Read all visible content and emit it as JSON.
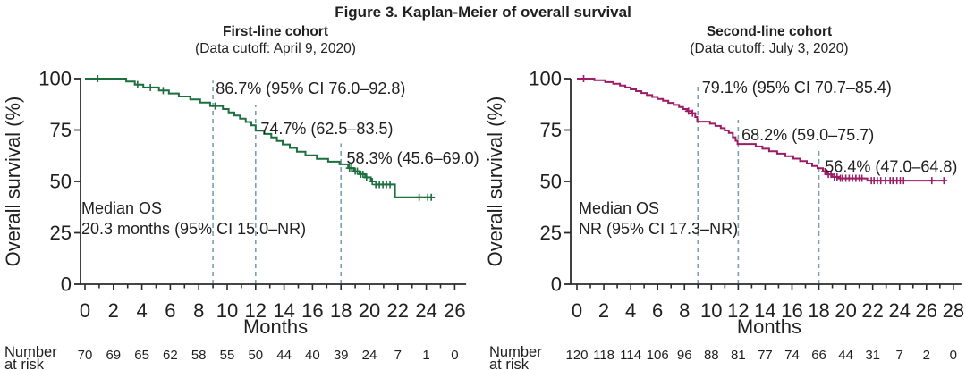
{
  "title": "Figure 3. Kaplan-Meier of overall survival",
  "chart_data": [
    {
      "type": "line",
      "subtype": "kaplan-meier-step",
      "header": "First-line cohort",
      "subheader": "(Data cutoff: April 9, 2020)",
      "color": "#1d6f3f",
      "dash_color": "#7d9eb0",
      "ylabel": "Overall survival (%)",
      "xlabel": "Months",
      "ylim": [
        0,
        100
      ],
      "yticks": [
        "100",
        "75",
        "50",
        "25",
        "0"
      ],
      "xticks": [
        "0",
        "2",
        "4",
        "6",
        "8",
        "10",
        "12",
        "14",
        "16",
        "18",
        "20",
        "22",
        "24",
        "26"
      ],
      "xmax": 26.8,
      "median_lines": [
        "Median OS",
        "20.3 months (95% CI 15.0–NR)"
      ],
      "annotations": [
        {
          "text": "86.7% (95% CI 76.0–92.8)",
          "x": 9.2,
          "pct": 92.6
        },
        {
          "text": "74.7% (62.5–83.5)",
          "x": 12.35,
          "pct": 73.0
        },
        {
          "text": "58.3% (45.6–69.0)",
          "x": 18.4,
          "pct": 58.7
        }
      ],
      "dashed_lines": [
        {
          "x": 9,
          "top_pct": 99.0
        },
        {
          "x": 12,
          "top_pct": 87.0
        },
        {
          "x": 18,
          "top_pct": 68.5
        }
      ],
      "risk_label_lines": [
        "Number",
        "at risk"
      ],
      "risk_values": [
        "70",
        "69",
        "65",
        "62",
        "58",
        "55",
        "50",
        "44",
        "40",
        "39",
        "24",
        "7",
        "1",
        "0"
      ],
      "curve": [
        [
          0,
          100
        ],
        [
          2.9,
          100
        ],
        [
          2.9,
          98.6
        ],
        [
          3.5,
          98.6
        ],
        [
          3.5,
          97.1
        ],
        [
          4.1,
          97.1
        ],
        [
          4.1,
          95.7
        ],
        [
          5.2,
          95.7
        ],
        [
          5.2,
          94.2
        ],
        [
          5.9,
          94.2
        ],
        [
          5.9,
          92.8
        ],
        [
          6.6,
          92.8
        ],
        [
          6.6,
          91.3
        ],
        [
          7.4,
          91.3
        ],
        [
          7.4,
          89.9
        ],
        [
          8.1,
          89.9
        ],
        [
          8.1,
          88.4
        ],
        [
          8.8,
          88.4
        ],
        [
          8.8,
          86.7
        ],
        [
          9.7,
          86.7
        ],
        [
          9.7,
          85.2
        ],
        [
          10.1,
          85.2
        ],
        [
          10.1,
          83.6
        ],
        [
          10.5,
          83.6
        ],
        [
          10.5,
          82.1
        ],
        [
          10.9,
          82.1
        ],
        [
          10.9,
          80.5
        ],
        [
          11.3,
          80.5
        ],
        [
          11.3,
          78.9
        ],
        [
          11.7,
          78.9
        ],
        [
          11.7,
          77.3
        ],
        [
          12.0,
          77.3
        ],
        [
          12.0,
          74.7
        ],
        [
          12.6,
          74.7
        ],
        [
          12.6,
          73.1
        ],
        [
          13.1,
          73.1
        ],
        [
          13.1,
          71.4
        ],
        [
          13.5,
          71.4
        ],
        [
          13.5,
          69.7
        ],
        [
          13.9,
          69.7
        ],
        [
          13.9,
          68.0
        ],
        [
          14.4,
          68.0
        ],
        [
          14.4,
          66.3
        ],
        [
          14.9,
          66.3
        ],
        [
          14.9,
          64.5
        ],
        [
          15.5,
          64.5
        ],
        [
          15.5,
          62.7
        ],
        [
          16.3,
          62.7
        ],
        [
          16.3,
          61.0
        ],
        [
          17.1,
          61.0
        ],
        [
          17.1,
          59.6
        ],
        [
          17.9,
          59.6
        ],
        [
          17.9,
          58.3
        ],
        [
          18.5,
          58.3
        ],
        [
          18.5,
          56.5
        ],
        [
          18.9,
          56.5
        ],
        [
          18.9,
          55.0
        ],
        [
          19.3,
          55.0
        ],
        [
          19.3,
          53.5
        ],
        [
          19.7,
          53.5
        ],
        [
          19.7,
          52.0
        ],
        [
          20.1,
          52.0
        ],
        [
          20.1,
          50.0
        ],
        [
          20.5,
          50.0
        ],
        [
          20.5,
          48.5
        ],
        [
          21.8,
          48.5
        ],
        [
          21.8,
          42.3
        ],
        [
          24.4,
          42.3
        ]
      ],
      "censors": [
        [
          0.9,
          100
        ],
        [
          3.7,
          97.1
        ],
        [
          4.6,
          95.7
        ],
        [
          5.5,
          94.2
        ],
        [
          9.15,
          86.7
        ],
        [
          18.6,
          56.5
        ],
        [
          18.75,
          56.5
        ],
        [
          19.0,
          55.0
        ],
        [
          19.15,
          55.0
        ],
        [
          19.4,
          53.5
        ],
        [
          19.55,
          53.5
        ],
        [
          19.8,
          52.0
        ],
        [
          20.2,
          50.0
        ],
        [
          20.45,
          48.5
        ],
        [
          20.7,
          48.5
        ],
        [
          20.95,
          48.5
        ],
        [
          21.2,
          48.5
        ],
        [
          21.45,
          48.5
        ],
        [
          23.5,
          42.3
        ],
        [
          24.1,
          42.3
        ],
        [
          24.35,
          42.3
        ]
      ]
    },
    {
      "type": "line",
      "subtype": "kaplan-meier-step",
      "header": "Second-line cohort",
      "subheader": "(Data cutoff: July 3, 2020)",
      "color": "#9d1c64",
      "dash_color": "#7d9eb0",
      "ylabel": "Overall survival (%)",
      "xlabel": "Months",
      "ylim": [
        0,
        100
      ],
      "yticks": [
        "100",
        "75",
        "50",
        "25",
        "0"
      ],
      "xticks": [
        "0",
        "2",
        "4",
        "6",
        "8",
        "10",
        "12",
        "14",
        "16",
        "18",
        "20",
        "22",
        "24",
        "26",
        "28"
      ],
      "xmax": 28.6,
      "median_lines": [
        "Median OS",
        "NR (95% CI 17.3–NR)"
      ],
      "annotations": [
        {
          "text": "79.1% (95% CI 70.7–85.4)",
          "x": 9.3,
          "pct": 93.0
        },
        {
          "text": "68.2% (59.0–75.7)",
          "x": 12.25,
          "pct": 70.0
        },
        {
          "text": "56.4% (47.0–64.8)",
          "x": 18.45,
          "pct": 54.5
        }
      ],
      "dashed_lines": [
        {
          "x": 9,
          "top_pct": 96.5
        },
        {
          "x": 12,
          "top_pct": 80.0
        },
        {
          "x": 18,
          "top_pct": 67.0
        }
      ],
      "risk_label_lines": [
        "Number",
        "at risk"
      ],
      "risk_values": [
        "120",
        "118",
        "114",
        "106",
        "96",
        "88",
        "81",
        "77",
        "74",
        "66",
        "44",
        "31",
        "7",
        "2",
        "0"
      ],
      "curve": [
        [
          0,
          100
        ],
        [
          1.3,
          100
        ],
        [
          1.3,
          99.2
        ],
        [
          2.1,
          99.2
        ],
        [
          2.1,
          98.3
        ],
        [
          2.7,
          98.3
        ],
        [
          2.7,
          97.5
        ],
        [
          3.2,
          97.5
        ],
        [
          3.2,
          96.6
        ],
        [
          3.6,
          96.6
        ],
        [
          3.6,
          95.7
        ],
        [
          4.0,
          95.7
        ],
        [
          4.0,
          94.8
        ],
        [
          4.4,
          94.8
        ],
        [
          4.4,
          93.9
        ],
        [
          4.8,
          93.9
        ],
        [
          4.8,
          93.0
        ],
        [
          5.2,
          93.0
        ],
        [
          5.2,
          92.0
        ],
        [
          5.6,
          92.0
        ],
        [
          5.6,
          91.1
        ],
        [
          6.0,
          91.1
        ],
        [
          6.0,
          90.1
        ],
        [
          6.4,
          90.1
        ],
        [
          6.4,
          89.2
        ],
        [
          6.8,
          89.2
        ],
        [
          6.8,
          88.2
        ],
        [
          7.2,
          88.2
        ],
        [
          7.2,
          87.2
        ],
        [
          7.6,
          87.2
        ],
        [
          7.6,
          86.2
        ],
        [
          7.9,
          86.2
        ],
        [
          7.9,
          85.2
        ],
        [
          8.2,
          85.2
        ],
        [
          8.2,
          84.2
        ],
        [
          8.5,
          84.2
        ],
        [
          8.5,
          83.2
        ],
        [
          8.8,
          83.2
        ],
        [
          8.8,
          81.3
        ],
        [
          8.95,
          81.3
        ],
        [
          8.95,
          79.1
        ],
        [
          9.9,
          79.1
        ],
        [
          9.9,
          78.1
        ],
        [
          10.3,
          78.1
        ],
        [
          10.3,
          77.0
        ],
        [
          10.7,
          77.0
        ],
        [
          10.7,
          75.9
        ],
        [
          11.0,
          75.9
        ],
        [
          11.0,
          74.8
        ],
        [
          11.3,
          74.8
        ],
        [
          11.3,
          73.6
        ],
        [
          11.6,
          73.6
        ],
        [
          11.6,
          71.5
        ],
        [
          11.8,
          71.5
        ],
        [
          11.8,
          69.8
        ],
        [
          11.95,
          69.8
        ],
        [
          11.95,
          68.2
        ],
        [
          13.3,
          68.2
        ],
        [
          13.3,
          67.0
        ],
        [
          13.8,
          67.0
        ],
        [
          13.8,
          65.9
        ],
        [
          14.3,
          65.9
        ],
        [
          14.3,
          64.7
        ],
        [
          14.9,
          64.7
        ],
        [
          14.9,
          63.5
        ],
        [
          15.5,
          63.5
        ],
        [
          15.5,
          62.3
        ],
        [
          16.1,
          62.3
        ],
        [
          16.1,
          61.1
        ],
        [
          16.6,
          61.1
        ],
        [
          16.6,
          59.9
        ],
        [
          17.1,
          59.9
        ],
        [
          17.1,
          58.7
        ],
        [
          17.5,
          58.7
        ],
        [
          17.5,
          57.5
        ],
        [
          17.9,
          57.5
        ],
        [
          17.9,
          56.4
        ],
        [
          18.3,
          56.4
        ],
        [
          18.3,
          54.8
        ],
        [
          18.6,
          54.8
        ],
        [
          18.6,
          53.4
        ],
        [
          19.0,
          53.4
        ],
        [
          19.0,
          52.2
        ],
        [
          19.5,
          52.2
        ],
        [
          19.5,
          51.5
        ],
        [
          21.6,
          51.5
        ],
        [
          21.6,
          50.4
        ],
        [
          27.35,
          50.4
        ]
      ],
      "censors": [
        [
          0.5,
          100
        ],
        [
          8.3,
          84.2
        ],
        [
          8.6,
          83.2
        ],
        [
          18.45,
          54.8
        ],
        [
          18.7,
          53.4
        ],
        [
          18.9,
          53.4
        ],
        [
          19.15,
          52.2
        ],
        [
          19.35,
          52.2
        ],
        [
          19.6,
          51.5
        ],
        [
          19.75,
          51.5
        ],
        [
          20.0,
          51.5
        ],
        [
          20.25,
          51.5
        ],
        [
          20.5,
          51.5
        ],
        [
          20.75,
          51.5
        ],
        [
          21.0,
          51.5
        ],
        [
          21.2,
          51.5
        ],
        [
          21.9,
          50.4
        ],
        [
          22.1,
          50.4
        ],
        [
          22.35,
          50.4
        ],
        [
          22.6,
          50.4
        ],
        [
          22.95,
          50.4
        ],
        [
          23.3,
          50.4
        ],
        [
          23.5,
          50.4
        ],
        [
          23.8,
          50.4
        ],
        [
          24.05,
          50.4
        ],
        [
          24.3,
          50.4
        ],
        [
          26.4,
          50.4
        ],
        [
          27.3,
          50.4
        ]
      ]
    }
  ]
}
